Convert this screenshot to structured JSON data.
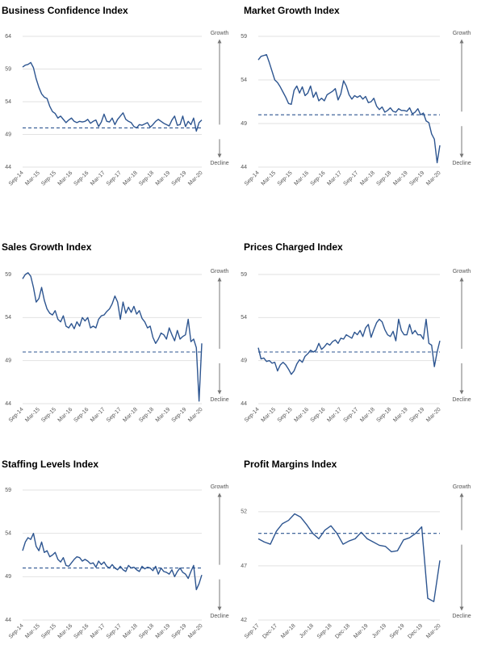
{
  "chart_data": [
    {
      "type": "line",
      "title": "Business Confidence Index",
      "color": "#2d5590",
      "grid": true,
      "ylim": [
        44,
        64
      ],
      "yticks": [
        44,
        49,
        54,
        59,
        64
      ],
      "reference_line": 50,
      "growth_label": "Growth",
      "decline_label": "Decline",
      "categories": [
        "Sep-14",
        null,
        null,
        null,
        null,
        null,
        "Mar-15",
        null,
        null,
        null,
        null,
        null,
        "Sep-15",
        null,
        null,
        null,
        null,
        null,
        "Mar-16",
        null,
        null,
        null,
        null,
        null,
        "Sep-16",
        null,
        null,
        null,
        null,
        null,
        "Mar-17",
        null,
        null,
        null,
        null,
        null,
        "Sep-17",
        null,
        null,
        null,
        null,
        null,
        "Mar-18",
        null,
        null,
        null,
        null,
        null,
        "Sep-18",
        null,
        null,
        null,
        null,
        null,
        "Mar-19",
        null,
        null,
        null,
        null,
        null,
        "Sep-19",
        null,
        null,
        null,
        null,
        null,
        "Mar-20"
      ],
      "values": [
        59.3,
        59.6,
        59.7,
        60.0,
        59.2,
        57.5,
        56.2,
        55.2,
        54.7,
        54.5,
        53.3,
        52.5,
        52.2,
        51.5,
        51.8,
        51.3,
        50.8,
        51.2,
        51.5,
        51.0,
        50.8,
        51.0,
        50.9,
        51.0,
        51.3,
        50.7,
        51.0,
        51.2,
        50.2,
        50.9,
        52.1,
        51.0,
        50.9,
        51.5,
        50.5,
        51.3,
        51.8,
        52.3,
        51.3,
        51.0,
        50.8,
        50.2,
        50.0,
        50.5,
        50.4,
        50.6,
        50.8,
        50.1,
        50.5,
        51.0,
        51.3,
        51.0,
        50.7,
        50.5,
        50.3,
        51.2,
        51.8,
        50.4,
        50.5,
        51.8,
        50.2,
        51.0,
        50.5,
        51.5,
        49.5,
        50.8,
        51.2
      ]
    },
    {
      "type": "line",
      "title": "Market Growth Index",
      "color": "#2d5590",
      "grid": true,
      "ylim": [
        44,
        59
      ],
      "yticks": [
        44,
        49,
        54,
        59
      ],
      "reference_line": 50,
      "growth_label": "Growth",
      "decline_label": "Decline",
      "categories": [
        "Sep-14",
        null,
        null,
        null,
        null,
        null,
        "Mar-15",
        null,
        null,
        null,
        null,
        null,
        "Sep-15",
        null,
        null,
        null,
        null,
        null,
        "Mar-16",
        null,
        null,
        null,
        null,
        null,
        "Sep-16",
        null,
        null,
        null,
        null,
        null,
        "Mar-17",
        null,
        null,
        null,
        null,
        null,
        "Sep-17",
        null,
        null,
        null,
        null,
        null,
        "Mar-18",
        null,
        null,
        null,
        null,
        null,
        "Sep-18",
        null,
        null,
        null,
        null,
        null,
        "Mar-19",
        null,
        null,
        null,
        null,
        null,
        "Sep-19",
        null,
        null,
        null,
        null,
        null,
        "Mar-20"
      ],
      "values": [
        56.3,
        56.7,
        56.8,
        56.9,
        56.0,
        55.0,
        54.0,
        53.7,
        53.2,
        52.6,
        52.0,
        51.3,
        51.2,
        52.8,
        53.3,
        52.5,
        53.2,
        52.2,
        52.5,
        53.3,
        52.0,
        52.6,
        51.6,
        51.9,
        51.6,
        52.3,
        52.5,
        52.7,
        53.0,
        51.7,
        52.4,
        53.9,
        53.3,
        52.3,
        51.8,
        52.2,
        52.0,
        52.2,
        51.8,
        52.1,
        51.4,
        51.5,
        51.9,
        51.0,
        50.6,
        50.9,
        50.3,
        50.5,
        50.8,
        50.4,
        50.3,
        50.7,
        50.5,
        50.5,
        50.4,
        50.8,
        50.1,
        50.3,
        50.7,
        50.0,
        50.2,
        49.3,
        49.1,
        47.8,
        47.2,
        44.5,
        46.5
      ]
    },
    {
      "type": "line",
      "title": "Sales Growth Index",
      "color": "#2d5590",
      "grid": true,
      "ylim": [
        44,
        59
      ],
      "yticks": [
        44,
        49,
        54,
        59
      ],
      "reference_line": 50,
      "growth_label": "Growth",
      "decline_label": "Decline",
      "categories": [
        "Sep-14",
        null,
        null,
        null,
        null,
        null,
        "Mar-15",
        null,
        null,
        null,
        null,
        null,
        "Sep-15",
        null,
        null,
        null,
        null,
        null,
        "Mar-16",
        null,
        null,
        null,
        null,
        null,
        "Sep-16",
        null,
        null,
        null,
        null,
        null,
        "Mar-17",
        null,
        null,
        null,
        null,
        null,
        "Sep-17",
        null,
        null,
        null,
        null,
        null,
        "Mar-18",
        null,
        null,
        null,
        null,
        null,
        "Sep-18",
        null,
        null,
        null,
        null,
        null,
        "Mar-19",
        null,
        null,
        null,
        null,
        null,
        "Sep-19",
        null,
        null,
        null,
        null,
        null,
        "Mar-20"
      ],
      "values": [
        58.5,
        59.0,
        59.2,
        58.8,
        57.5,
        55.8,
        56.2,
        57.5,
        56.0,
        55.0,
        54.5,
        54.3,
        54.8,
        53.8,
        53.5,
        54.2,
        53.0,
        52.8,
        53.3,
        52.7,
        53.5,
        53.0,
        54.0,
        53.6,
        54.0,
        52.8,
        53.0,
        52.8,
        53.8,
        54.2,
        54.3,
        54.7,
        55.0,
        55.6,
        56.5,
        55.8,
        53.8,
        55.8,
        54.5,
        55.2,
        54.6,
        55.3,
        54.4,
        54.8,
        53.9,
        53.5,
        52.8,
        53.0,
        51.7,
        51.0,
        51.5,
        52.2,
        52.0,
        51.5,
        52.8,
        52.0,
        51.3,
        52.5,
        51.5,
        51.8,
        52.0,
        53.8,
        51.2,
        51.5,
        50.5,
        44.3,
        51.0
      ]
    },
    {
      "type": "line",
      "title": "Prices Charged Index",
      "color": "#2d5590",
      "grid": true,
      "ylim": [
        44,
        59
      ],
      "yticks": [
        44,
        49,
        54,
        59
      ],
      "reference_line": 50,
      "growth_label": "Growth",
      "decline_label": "Decline",
      "categories": [
        "Sep-14",
        null,
        null,
        null,
        null,
        null,
        "Mar-15",
        null,
        null,
        null,
        null,
        null,
        "Sep-15",
        null,
        null,
        null,
        null,
        null,
        "Mar-16",
        null,
        null,
        null,
        null,
        null,
        "Sep-16",
        null,
        null,
        null,
        null,
        null,
        "Mar-17",
        null,
        null,
        null,
        null,
        null,
        "Sep-17",
        null,
        null,
        null,
        null,
        null,
        "Mar-18",
        null,
        null,
        null,
        null,
        null,
        "Sep-18",
        null,
        null,
        null,
        null,
        null,
        "Mar-19",
        null,
        null,
        null,
        null,
        null,
        "Sep-19",
        null,
        null,
        null,
        null,
        null,
        "Mar-20"
      ],
      "values": [
        50.5,
        49.2,
        49.3,
        48.9,
        49.0,
        48.7,
        48.8,
        47.8,
        48.5,
        48.8,
        48.5,
        48.0,
        47.4,
        47.8,
        48.6,
        49.1,
        48.8,
        49.5,
        49.8,
        50.2,
        50.0,
        50.2,
        51.0,
        50.3,
        50.6,
        51.0,
        50.8,
        51.2,
        51.4,
        51.0,
        51.6,
        51.5,
        52.0,
        51.8,
        51.6,
        52.3,
        52.0,
        52.5,
        51.8,
        52.8,
        53.2,
        51.7,
        52.6,
        53.4,
        53.8,
        53.5,
        52.6,
        52.0,
        51.8,
        52.4,
        51.3,
        53.8,
        52.5,
        52.0,
        52.0,
        53.2,
        52.1,
        52.5,
        52.0,
        52.0,
        51.5,
        53.8,
        51.0,
        50.8,
        48.3,
        50.0,
        51.3
      ]
    },
    {
      "type": "line",
      "title": "Staffing Levels Index",
      "color": "#2d5590",
      "grid": true,
      "ylim": [
        44,
        59
      ],
      "yticks": [
        44,
        49,
        54,
        59
      ],
      "reference_line": 50,
      "growth_label": "Growth",
      "decline_label": "Decline",
      "categories": [
        "Sep-14",
        null,
        null,
        null,
        null,
        null,
        "Mar-15",
        null,
        null,
        null,
        null,
        null,
        "Sep-15",
        null,
        null,
        null,
        null,
        null,
        "Mar-16",
        null,
        null,
        null,
        null,
        null,
        "Sep-16",
        null,
        null,
        null,
        null,
        null,
        "Mar-17",
        null,
        null,
        null,
        null,
        null,
        "Sep-17",
        null,
        null,
        null,
        null,
        null,
        "Mar-18",
        null,
        null,
        null,
        null,
        null,
        "Sep-18",
        null,
        null,
        null,
        null,
        null,
        "Mar-19",
        null,
        null,
        null,
        null,
        null,
        "Sep-19",
        null,
        null,
        null,
        null,
        null,
        "Mar-20"
      ],
      "values": [
        52.0,
        53.0,
        53.5,
        53.3,
        54.0,
        52.5,
        52.0,
        53.0,
        51.8,
        52.0,
        51.3,
        51.5,
        51.8,
        51.0,
        50.7,
        51.2,
        50.3,
        50.2,
        50.6,
        51.0,
        51.3,
        51.2,
        50.8,
        51.0,
        50.8,
        50.5,
        50.6,
        50.1,
        50.8,
        50.4,
        50.7,
        50.2,
        50.0,
        50.4,
        50.0,
        49.8,
        50.2,
        49.8,
        49.6,
        50.3,
        50.0,
        50.1,
        49.8,
        49.6,
        50.2,
        49.9,
        50.1,
        50.0,
        49.7,
        50.2,
        49.3,
        50.0,
        49.6,
        49.5,
        49.3,
        49.8,
        49.0,
        49.6,
        50.0,
        49.5,
        49.3,
        48.8,
        49.6,
        50.3,
        47.5,
        48.2,
        49.2
      ]
    },
    {
      "type": "line",
      "title": "Profit Margins Index",
      "color": "#2d5590",
      "grid": true,
      "ylim": [
        42,
        54
      ],
      "yticks": [
        42,
        47,
        52
      ],
      "reference_line": 50,
      "growth_label": "Growth",
      "decline_label": "Decline",
      "categories": [
        "Sep-17",
        null,
        null,
        "Dec-17",
        null,
        null,
        "Mar-18",
        null,
        null,
        "Jun-18",
        null,
        null,
        "Sep-18",
        null,
        null,
        "Dec-18",
        null,
        null,
        "Mar-19",
        null,
        null,
        "Jun-19",
        null,
        null,
        "Sep-19",
        null,
        null,
        "Dec-19",
        null,
        null,
        "Mar-20"
      ],
      "values": [
        49.5,
        49.2,
        49.0,
        50.2,
        50.9,
        51.2,
        51.8,
        51.5,
        50.8,
        50.0,
        49.5,
        50.3,
        50.7,
        50.0,
        49.0,
        49.3,
        49.5,
        50.1,
        49.5,
        49.2,
        48.9,
        48.8,
        48.3,
        48.4,
        49.4,
        49.6,
        50.0,
        50.6,
        44.0,
        43.7,
        47.5
      ]
    }
  ]
}
